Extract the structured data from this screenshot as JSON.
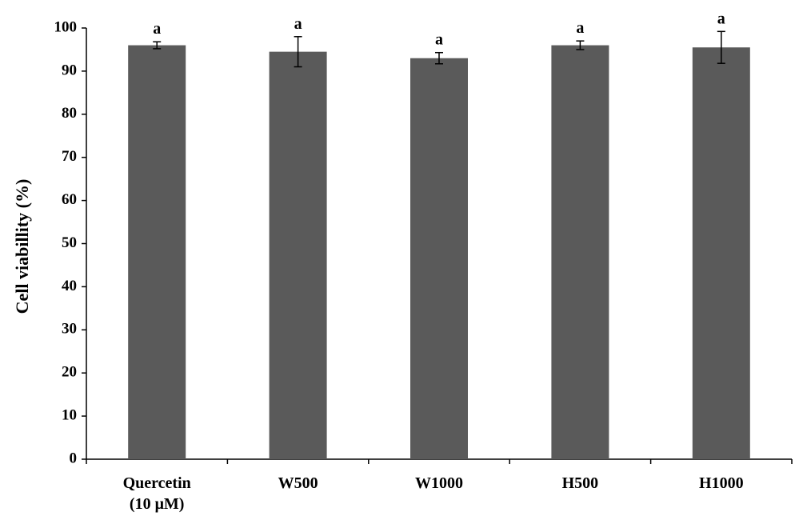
{
  "chart_data": {
    "type": "bar",
    "ylabel": "Cell viabillity (%)",
    "xlabel": "",
    "title": "",
    "ylim": [
      0,
      100
    ],
    "yticks": [
      0,
      10,
      20,
      30,
      40,
      50,
      60,
      70,
      80,
      90,
      100
    ],
    "grid": false,
    "categories": [
      {
        "lines": [
          "Quercetin",
          "(10 μM)"
        ]
      },
      {
        "lines": [
          "W500"
        ]
      },
      {
        "lines": [
          "W1000"
        ]
      },
      {
        "lines": [
          "H500"
        ]
      },
      {
        "lines": [
          "H1000"
        ]
      }
    ],
    "values": [
      96,
      94.5,
      93,
      96,
      95.5
    ],
    "error": [
      0.8,
      3.5,
      1.3,
      1.0,
      3.7
    ],
    "significance": [
      "a",
      "a",
      "a",
      "a",
      "a"
    ],
    "bar_color": "#5a5a5a"
  }
}
